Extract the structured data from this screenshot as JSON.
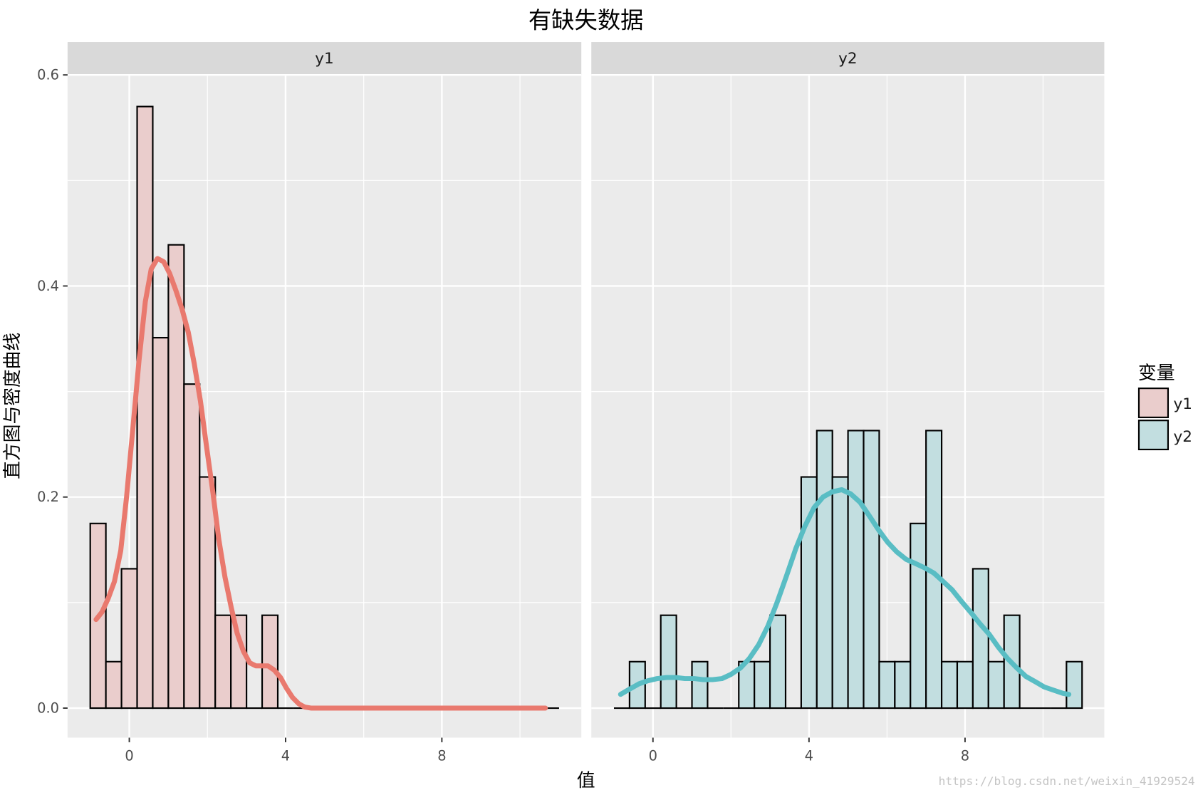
{
  "chart_data": {
    "type": "bar",
    "title": "有缺失数据",
    "xlabel": "值",
    "ylabel": "直方图与密度曲线",
    "xlim": [
      -1.58,
      11.57
    ],
    "ylim": [
      -0.028,
      0.6
    ],
    "x_ticks": [
      0,
      4,
      8
    ],
    "x_tick_labels": [
      "0",
      "4",
      "8"
    ],
    "x_minor_ticks": [
      2,
      6,
      10
    ],
    "y_ticks": [
      0,
      0.2,
      0.4,
      0.6
    ],
    "y_tick_labels": [
      "0.0",
      "0.2",
      "0.4",
      "0.6"
    ],
    "y_minor_ticks": [
      0.1,
      0.3,
      0.5
    ],
    "grid": true,
    "legend": {
      "title": "变量",
      "position": "right"
    },
    "bin_start": -1.0,
    "bin_width": 0.4,
    "series": [
      {
        "name": "y1",
        "fill": "#EACDCC",
        "line_color": "#E9796E",
        "histogram_density": [
          0.175,
          0.044,
          0.132,
          0.57,
          0.351,
          0.439,
          0.307,
          0.219,
          0.088,
          0.088,
          0,
          0.088,
          0,
          0,
          0,
          0,
          0,
          0,
          0,
          0,
          0,
          0,
          0,
          0,
          0,
          0,
          0,
          0,
          0,
          0
        ],
        "density_curve": {
          "x": [
            -0.85,
            -0.7,
            -0.54,
            -0.38,
            -0.22,
            -0.07,
            0.09,
            0.25,
            0.41,
            0.56,
            0.72,
            0.88,
            1.03,
            1.19,
            1.35,
            1.51,
            1.66,
            1.82,
            1.98,
            2.14,
            2.29,
            2.45,
            2.61,
            2.76,
            2.92,
            3.08,
            3.24,
            3.39,
            3.55,
            3.71,
            3.87,
            4.02,
            4.18,
            4.34,
            4.49,
            4.65,
            6.5,
            8.5,
            10.65
          ],
          "y": [
            0.084,
            0.091,
            0.104,
            0.12,
            0.149,
            0.2,
            0.265,
            0.33,
            0.385,
            0.416,
            0.426,
            0.423,
            0.412,
            0.396,
            0.378,
            0.356,
            0.327,
            0.291,
            0.247,
            0.204,
            0.16,
            0.124,
            0.095,
            0.071,
            0.054,
            0.043,
            0.04,
            0.04,
            0.04,
            0.036,
            0.029,
            0.019,
            0.01,
            0.004,
            0.001,
            0,
            0,
            0,
            0
          ]
        }
      },
      {
        "name": "y2",
        "fill": "#C2DEE0",
        "line_color": "#59BDC4",
        "histogram_density": [
          0,
          0.044,
          0,
          0.088,
          0,
          0.044,
          0,
          0,
          0.044,
          0.044,
          0.088,
          0,
          0.219,
          0.263,
          0.219,
          0.263,
          0.263,
          0.044,
          0.044,
          0.175,
          0.263,
          0.044,
          0.044,
          0.132,
          0.044,
          0.088,
          0,
          0,
          0,
          0.044
        ],
        "density_curve": {
          "x": [
            -0.83,
            -0.6,
            -0.36,
            -0.12,
            0.11,
            0.35,
            0.59,
            0.82,
            1.06,
            1.29,
            1.53,
            1.77,
            2.0,
            2.24,
            2.47,
            2.71,
            2.95,
            3.18,
            3.42,
            3.66,
            3.89,
            4.13,
            4.36,
            4.6,
            4.84,
            5.07,
            5.31,
            5.55,
            5.78,
            6.02,
            6.25,
            6.49,
            6.73,
            6.96,
            7.2,
            7.44,
            7.67,
            7.91,
            8.14,
            8.38,
            8.62,
            8.85,
            9.09,
            9.33,
            9.56,
            9.8,
            10.03,
            10.27,
            10.51,
            10.66
          ],
          "y": [
            0.013,
            0.018,
            0.023,
            0.026,
            0.028,
            0.029,
            0.029,
            0.028,
            0.028,
            0.027,
            0.027,
            0.028,
            0.032,
            0.038,
            0.047,
            0.06,
            0.078,
            0.1,
            0.125,
            0.151,
            0.172,
            0.19,
            0.2,
            0.205,
            0.207,
            0.203,
            0.195,
            0.182,
            0.169,
            0.157,
            0.148,
            0.141,
            0.137,
            0.133,
            0.128,
            0.12,
            0.112,
            0.101,
            0.091,
            0.08,
            0.07,
            0.058,
            0.047,
            0.038,
            0.03,
            0.025,
            0.02,
            0.017,
            0.014,
            0.013
          ]
        }
      }
    ]
  },
  "watermark": "https://blog.csdn.net/weixin_41929524"
}
